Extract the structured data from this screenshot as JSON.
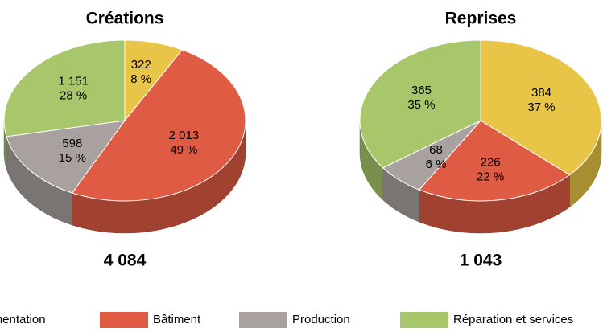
{
  "legend": {
    "labels": [
      "Alimentation",
      "Bâtiment",
      "Production",
      "Réparation et services"
    ],
    "colors": [
      "#e9c547",
      "#e05b43",
      "#a9a1a0",
      "#a8c76a"
    ]
  },
  "chart_data": [
    {
      "type": "pie3d",
      "title": "Créations",
      "values": [
        322,
        2013,
        598,
        1151
      ],
      "value_labels": [
        "322",
        "2 013",
        "598",
        "1 151"
      ],
      "percents": [
        8,
        49,
        15,
        28
      ],
      "percent_labels": [
        "8 %",
        "49 %",
        "15 %",
        "28 %"
      ],
      "total": 4084,
      "total_label": "4 084"
    },
    {
      "type": "pie3d",
      "title": "Reprises",
      "values": [
        384,
        226,
        68,
        365
      ],
      "value_labels": [
        "384",
        "226",
        "68",
        "365"
      ],
      "percents": [
        37,
        22,
        6,
        35
      ],
      "percent_labels": [
        "37 %",
        "22 %",
        "6 %",
        "35 %"
      ],
      "total": 1043,
      "total_label": "1 043"
    }
  ]
}
